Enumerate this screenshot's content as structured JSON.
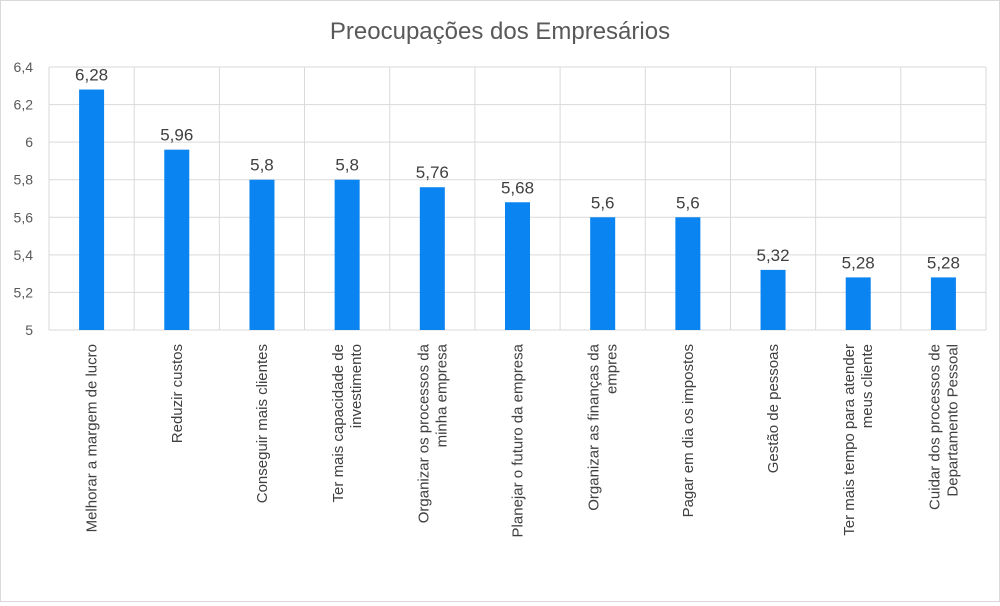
{
  "chart_data": {
    "type": "bar",
    "title": "Preocupações dos Empresários",
    "xlabel": "",
    "ylabel": "",
    "ylim": [
      5,
      6.4
    ],
    "yticks": [
      "5",
      "5,2",
      "5,4",
      "5,6",
      "5,8",
      "6",
      "6,2",
      "6,4"
    ],
    "ytick_values": [
      5,
      5.2,
      5.4,
      5.6,
      5.8,
      6,
      6.2,
      6.4
    ],
    "grid": true,
    "bar_color": "#0a84f0",
    "categories": [
      "Melhorar a margem de lucro",
      "Reduzir custos",
      "Conseguir mais clientes",
      "Ter mais capacidade de\ninvestimento",
      "Organizar os processos da\nminha empresa",
      "Planejar o futuro da empresa",
      "Organizar as finanças da\nempres",
      "Pagar em dia os impostos",
      "Gestão de pessoas",
      "Ter mais tempo para atender\nmeus cliente",
      "Cuidar dos processos de\nDepartamento Pessoal"
    ],
    "values": [
      6.28,
      5.96,
      5.8,
      5.8,
      5.76,
      5.68,
      5.6,
      5.6,
      5.32,
      5.28,
      5.28
    ],
    "data_labels": [
      "6,28",
      "5,96",
      "5,8",
      "5,8",
      "5,76",
      "5,68",
      "5,6",
      "5,6",
      "5,32",
      "5,28",
      "5,28"
    ]
  }
}
